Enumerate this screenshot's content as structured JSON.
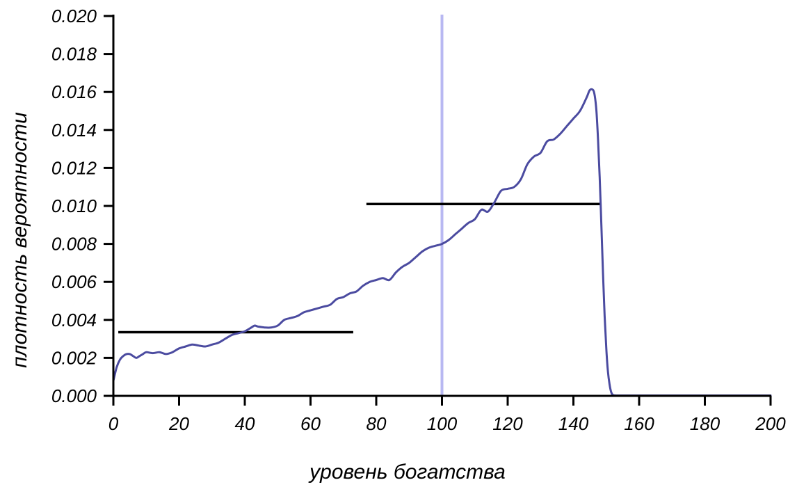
{
  "chart_data": {
    "type": "line",
    "xlabel": "уровень богатства",
    "ylabel": "плотность вероятности",
    "xlim": [
      0,
      200
    ],
    "ylim": [
      0,
      0.02
    ],
    "x_ticks": [
      "0",
      "20",
      "40",
      "60",
      "80",
      "100",
      "120",
      "140",
      "160",
      "180",
      "200"
    ],
    "y_ticks": [
      "0.000",
      "0.002",
      "0.004",
      "0.006",
      "0.008",
      "0.010",
      "0.012",
      "0.014",
      "0.016",
      "0.018",
      "0.020"
    ],
    "grid": false,
    "legend": "none",
    "series": [
      {
        "color": "#4b4ba0",
        "points": [
          [
            0,
            0.0008
          ],
          [
            1,
            0.0015
          ],
          [
            2,
            0.0019
          ],
          [
            3,
            0.0021
          ],
          [
            4,
            0.0022
          ],
          [
            5,
            0.0022
          ],
          [
            6,
            0.0021
          ],
          [
            7,
            0.002
          ],
          [
            8,
            0.0021
          ],
          [
            9,
            0.0022
          ],
          [
            10,
            0.0023
          ],
          [
            12,
            0.00225
          ],
          [
            14,
            0.0023
          ],
          [
            16,
            0.0022
          ],
          [
            18,
            0.0023
          ],
          [
            20,
            0.0025
          ],
          [
            22,
            0.0026
          ],
          [
            24,
            0.0027
          ],
          [
            26,
            0.00265
          ],
          [
            28,
            0.0026
          ],
          [
            30,
            0.0027
          ],
          [
            32,
            0.0028
          ],
          [
            34,
            0.003
          ],
          [
            36,
            0.0032
          ],
          [
            38,
            0.0033
          ],
          [
            40,
            0.0034
          ],
          [
            42,
            0.0036
          ],
          [
            43,
            0.0037
          ],
          [
            44,
            0.00365
          ],
          [
            46,
            0.0036
          ],
          [
            48,
            0.0036
          ],
          [
            50,
            0.0037
          ],
          [
            52,
            0.004
          ],
          [
            54,
            0.0041
          ],
          [
            56,
            0.0042
          ],
          [
            58,
            0.0044
          ],
          [
            60,
            0.0045
          ],
          [
            62,
            0.0046
          ],
          [
            64,
            0.0047
          ],
          [
            66,
            0.0048
          ],
          [
            68,
            0.0051
          ],
          [
            70,
            0.0052
          ],
          [
            72,
            0.0054
          ],
          [
            74,
            0.0055
          ],
          [
            76,
            0.0058
          ],
          [
            78,
            0.006
          ],
          [
            80,
            0.0061
          ],
          [
            82,
            0.0062
          ],
          [
            84,
            0.0061
          ],
          [
            86,
            0.0065
          ],
          [
            88,
            0.0068
          ],
          [
            90,
            0.007
          ],
          [
            92,
            0.0073
          ],
          [
            94,
            0.0076
          ],
          [
            96,
            0.0078
          ],
          [
            98,
            0.0079
          ],
          [
            100,
            0.008
          ],
          [
            102,
            0.0082
          ],
          [
            104,
            0.0085
          ],
          [
            106,
            0.0088
          ],
          [
            108,
            0.0091
          ],
          [
            110,
            0.0093
          ],
          [
            112,
            0.0098
          ],
          [
            114,
            0.0097
          ],
          [
            116,
            0.0102
          ],
          [
            118,
            0.0108
          ],
          [
            120,
            0.0109
          ],
          [
            122,
            0.011
          ],
          [
            124,
            0.0114
          ],
          [
            126,
            0.0122
          ],
          [
            128,
            0.0126
          ],
          [
            130,
            0.0128
          ],
          [
            132,
            0.0134
          ],
          [
            134,
            0.0135
          ],
          [
            136,
            0.0138
          ],
          [
            138,
            0.0142
          ],
          [
            140,
            0.0146
          ],
          [
            142,
            0.015
          ],
          [
            144,
            0.0157
          ],
          [
            145,
            0.0161
          ],
          [
            146,
            0.0161
          ],
          [
            146.5,
            0.0158
          ],
          [
            147,
            0.015
          ],
          [
            147.5,
            0.0135
          ],
          [
            148,
            0.0115
          ],
          [
            148.5,
            0.009
          ],
          [
            149,
            0.0065
          ],
          [
            149.5,
            0.0042
          ],
          [
            150,
            0.0025
          ],
          [
            150.5,
            0.0013
          ],
          [
            151,
            0.0006
          ],
          [
            151.5,
            0.0002
          ],
          [
            152,
            5e-05
          ],
          [
            153,
            2e-05
          ],
          [
            155,
            2e-05
          ],
          [
            170,
            2e-05
          ],
          [
            190,
            2e-05
          ],
          [
            200,
            2e-05
          ]
        ]
      }
    ],
    "hlines": [
      {
        "y": 0.00335,
        "x_from": 1.5,
        "x_to": 73,
        "color": "#000000"
      },
      {
        "y": 0.0101,
        "x_from": 77,
        "x_to": 148.5,
        "color": "#000000"
      }
    ],
    "vline": {
      "x": 100,
      "color": "#b8b8f2"
    }
  }
}
